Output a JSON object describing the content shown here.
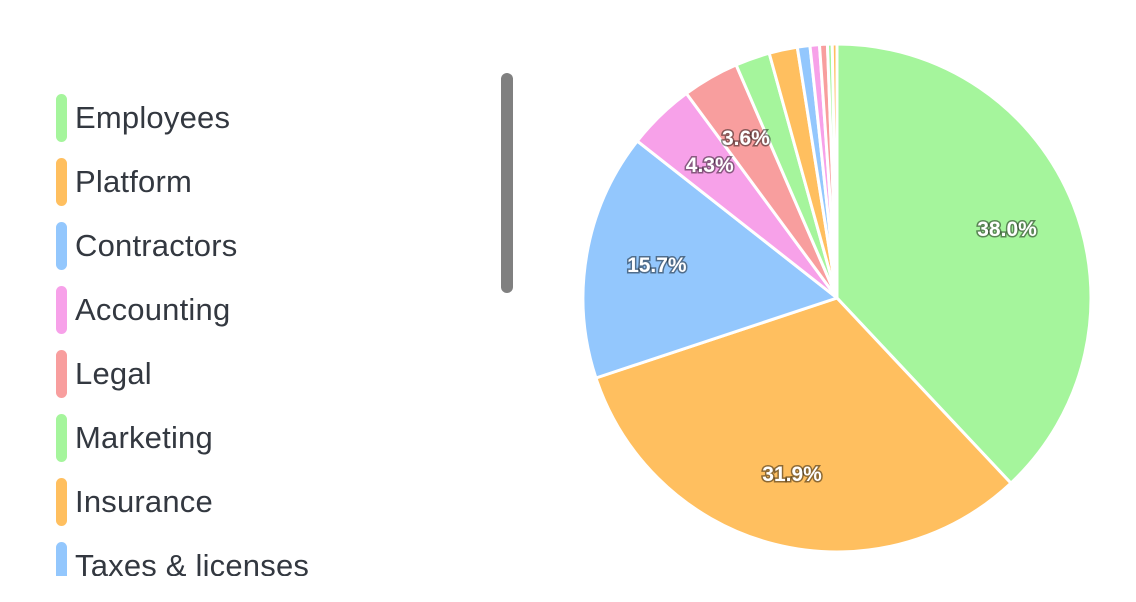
{
  "chart_data": {
    "type": "pie",
    "title": "",
    "legend_position": "left",
    "slices": [
      {
        "name": "Employees",
        "value": 38.0,
        "label": "38.0%",
        "color": "#a5f59c"
      },
      {
        "name": "Platform",
        "value": 31.9,
        "label": "31.9%",
        "color": "#ffbf5f"
      },
      {
        "name": "Contractors",
        "value": 15.7,
        "label": "15.7%",
        "color": "#93c7fd"
      },
      {
        "name": "Accounting",
        "value": 4.3,
        "label": "4.3%",
        "color": "#f7a1e9"
      },
      {
        "name": "Legal",
        "value": 3.6,
        "label": "3.6%",
        "color": "#f89e9e"
      },
      {
        "name": "Marketing",
        "value": 2.2,
        "label": "",
        "color": "#a5f59c"
      },
      {
        "name": "Insurance",
        "value": 1.8,
        "label": "",
        "color": "#ffbf5f"
      },
      {
        "name": "Taxes & licenses",
        "value": 0.8,
        "label": "",
        "color": "#93c7fd"
      },
      {
        "name": "",
        "value": 0.6,
        "label": "",
        "color": "#f7a1e9"
      },
      {
        "name": "",
        "value": 0.5,
        "label": "",
        "color": "#f89e9e"
      },
      {
        "name": "",
        "value": 0.3,
        "label": "",
        "color": "#a5f59c"
      },
      {
        "name": "",
        "value": 0.3,
        "label": "",
        "color": "#ffbf5f"
      }
    ]
  },
  "legend": {
    "items": [
      {
        "label": "Employees",
        "color": "#a5f59c"
      },
      {
        "label": "Platform",
        "color": "#ffbf5f"
      },
      {
        "label": "Contractors",
        "color": "#93c7fd"
      },
      {
        "label": "Accounting",
        "color": "#f7a1e9"
      },
      {
        "label": "Legal",
        "color": "#f89e9e"
      },
      {
        "label": "Marketing",
        "color": "#a5f59c"
      },
      {
        "label": "Insurance",
        "color": "#ffbf5f"
      },
      {
        "label": "Taxes & licenses",
        "color": "#93c7fd"
      }
    ]
  },
  "colors": {
    "slice_border": "#ffffff",
    "legend_text": "#333840",
    "scrollbar": "#808080"
  }
}
